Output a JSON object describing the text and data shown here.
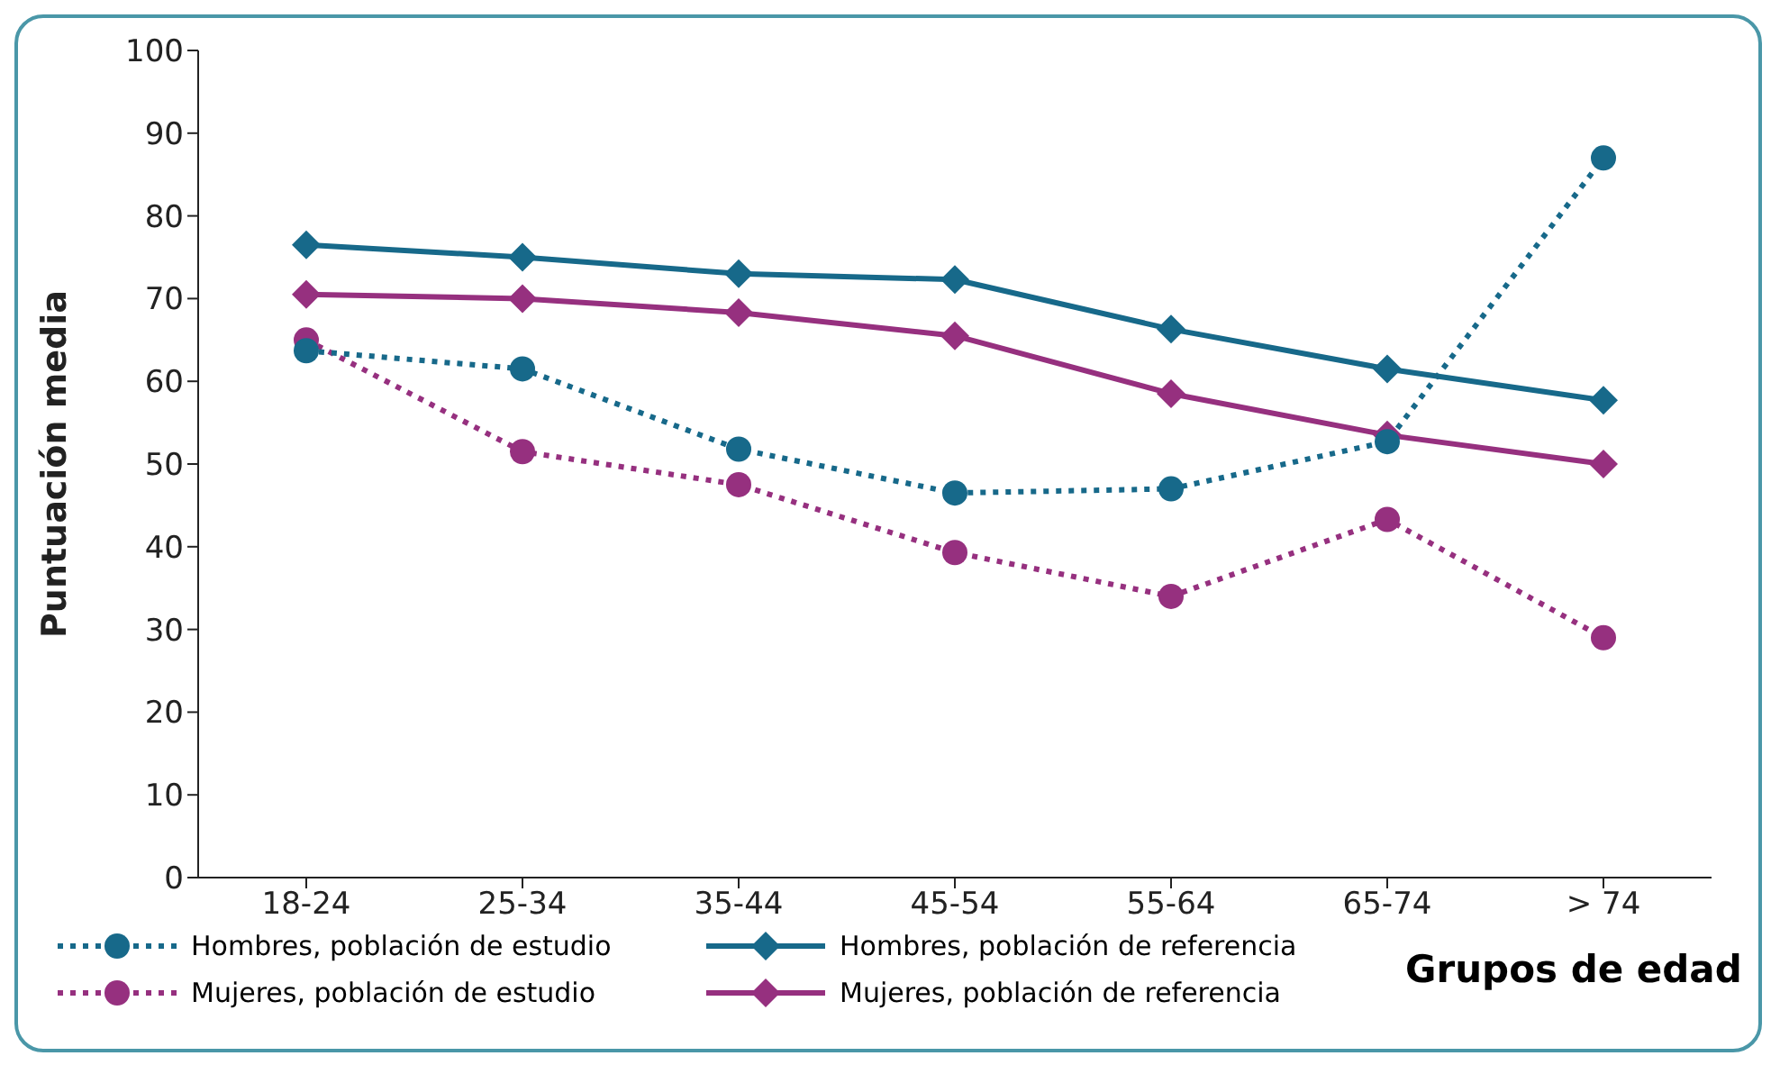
{
  "chart_data": {
    "type": "line",
    "xlabel": "Grupos de edad",
    "ylabel": "Puntuación media",
    "categories": [
      "18-24",
      "25-34",
      "35-44",
      "45-54",
      "55-64",
      "65-74",
      "> 74"
    ],
    "series": [
      {
        "name": "Hombres, población de estudio",
        "color": "#17698a",
        "line_style": "dotted",
        "marker": "circle",
        "values": [
          63.7,
          61.5,
          51.8,
          46.5,
          47,
          52.7,
          87
        ]
      },
      {
        "name": "Hombres, población de referencia",
        "color": "#17698a",
        "line_style": "solid",
        "marker": "diamond",
        "values": [
          76.5,
          75,
          73,
          72.3,
          66.3,
          61.5,
          57.7
        ]
      },
      {
        "name": "Mujeres, población de estudio",
        "color": "#96307f",
        "line_style": "dotted",
        "marker": "circle",
        "values": [
          65,
          51.5,
          47.5,
          39.3,
          34,
          43.3,
          29
        ]
      },
      {
        "name": "Mujeres, población de referencia",
        "color": "#96307f",
        "line_style": "solid",
        "marker": "diamond",
        "values": [
          70.5,
          70,
          68.3,
          65.5,
          58.5,
          53.5,
          50
        ]
      }
    ],
    "ylim": [
      0,
      100
    ],
    "yticks": [
      0,
      10,
      20,
      30,
      40,
      50,
      60,
      70,
      80,
      90,
      100
    ],
    "legend": "bottom"
  }
}
